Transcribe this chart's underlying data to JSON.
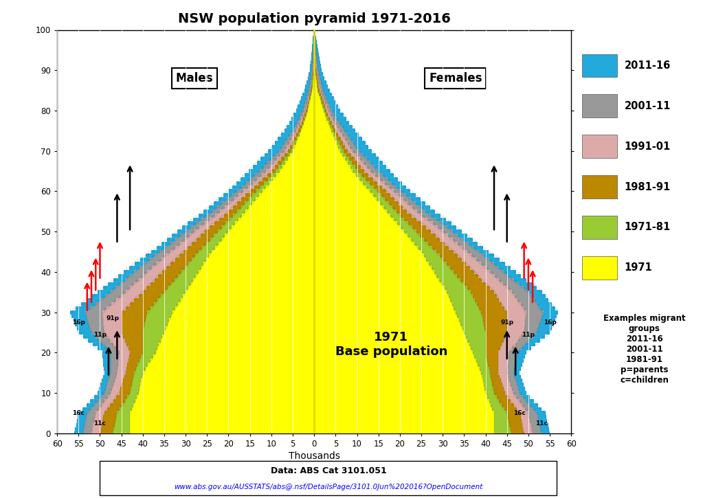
{
  "title": "NSW population pyramid 1971-2016",
  "colors": {
    "1971": "#FFFF00",
    "1971-81": "#99CC33",
    "1981-91": "#BB8800",
    "1991-01": "#DDAAAA",
    "2001-11": "#999999",
    "2011-16": "#22AADD"
  },
  "legend_items": [
    [
      "2011-16",
      "#22AADD"
    ],
    [
      "2001-11",
      "#999999"
    ],
    [
      "1991-01",
      "#DDAAAA"
    ],
    [
      "1981-91",
      "#BB8800"
    ],
    [
      "1971-81",
      "#99CC33"
    ],
    [
      "1971",
      "#FFFF00"
    ]
  ],
  "xlabel": "Thousands",
  "title_fontsize": 14,
  "footnote_bold": "Data: ABS Cat 3101.051",
  "footnote_url": "www.abs.gov.au/AUSSTATS/abs@.nsf/DetailsPage/3101.0Jun%202016?OpenDocument",
  "extra_legend_text": "Examples migrant\ngroups\n2011-16\n2001-11\n1981-91\np=parents\nc=children"
}
